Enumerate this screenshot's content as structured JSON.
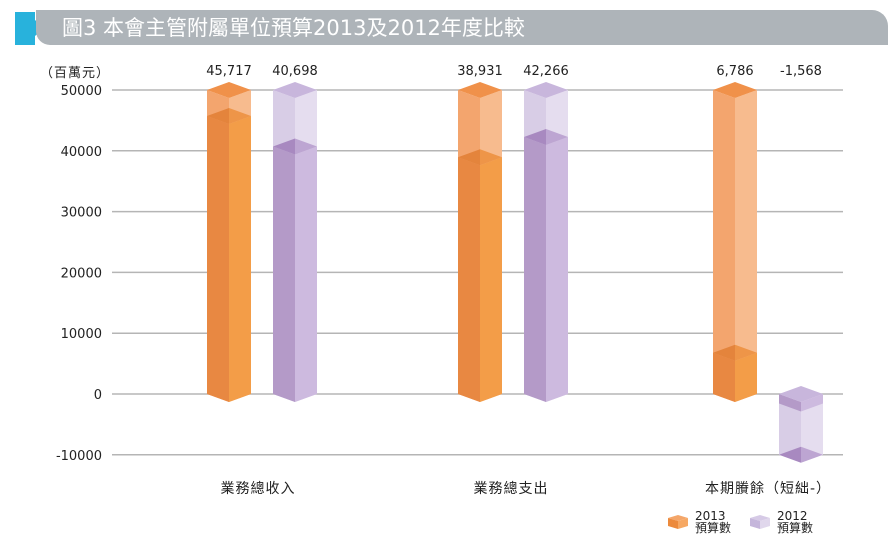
{
  "header": {
    "title": "圖3 本會主管附屬單位預算2013及2012年度比較"
  },
  "chart_data": {
    "type": "bar",
    "title": "圖3 本會主管附屬單位預算2013及2012年度比較",
    "ylabel": "（百萬元）",
    "xlabel": "",
    "categories": [
      "業務總收入",
      "業務總支出",
      "本期賸餘（短絀-）"
    ],
    "series": [
      {
        "name": "2013 預算數",
        "color": "#f0923e",
        "values": [
          45717,
          38931,
          6786
        ]
      },
      {
        "name": "2012 預算數",
        "color": "#b49ac8",
        "values": [
          40698,
          42266,
          -1568
        ]
      }
    ],
    "value_labels": [
      [
        "45,717",
        "40,698"
      ],
      [
        "38,931",
        "42,266"
      ],
      [
        "6,786",
        "-1,568"
      ]
    ],
    "ylim": [
      -10000,
      50000
    ],
    "yticks": [
      50000,
      40000,
      30000,
      20000,
      10000,
      0,
      -10000
    ],
    "ytick_labels": [
      "50000",
      "40000",
      "30000",
      "20000",
      "10000",
      "0",
      "-10000"
    ],
    "grid": true,
    "legend_position": "bottom-right"
  },
  "legend": {
    "items": [
      {
        "year": "2013",
        "label": "預算數",
        "color": "#f0923e"
      },
      {
        "year": "2012",
        "label": "預算數",
        "color": "#c9b8dc"
      }
    ]
  },
  "colors": {
    "title_bar": "#aeb4b9",
    "title_marker": "#28b2dc",
    "gridline": "#b5b5b5"
  }
}
